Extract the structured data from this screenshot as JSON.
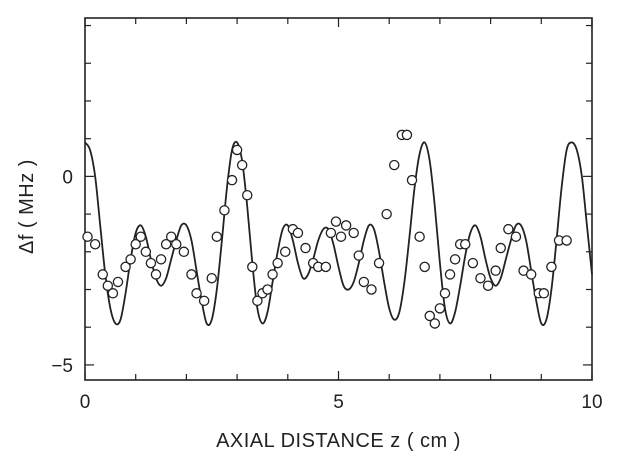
{
  "chart_data": {
    "type": "scatter",
    "xlabel": "AXIAL DISTANCE z ( cm )",
    "ylabel": "Δf  ( MHz )",
    "xlim": [
      0,
      10
    ],
    "ylim": [
      -5.4,
      4.2
    ],
    "x_ticks": [
      0,
      5,
      10
    ],
    "x_tick_labels": [
      "0",
      "5",
      "10"
    ],
    "y_ticks": [
      -5,
      0
    ],
    "y_tick_labels": [
      "−5",
      "0"
    ],
    "grid": false,
    "legend": "none",
    "colors": {
      "line": "#222222",
      "marker_fill": "#ffffff",
      "marker_edge": "#222222"
    },
    "series": [
      {
        "kind": "line",
        "x": [
          0,
          0.1,
          0.2,
          0.3,
          0.4,
          0.5,
          0.6,
          0.7,
          0.8,
          0.9,
          1.0,
          1.1,
          1.2,
          1.3,
          1.4,
          1.5,
          1.6,
          1.7,
          1.8,
          1.9,
          2.0,
          2.1,
          2.2,
          2.3,
          2.4,
          2.5,
          2.6,
          2.7,
          2.8,
          2.9,
          3.0,
          3.1,
          3.2,
          3.3,
          3.4,
          3.5,
          3.6,
          3.7,
          3.8,
          3.9,
          4.0,
          4.1,
          4.2,
          4.3,
          4.4,
          4.5,
          4.6,
          4.7,
          4.8,
          4.9,
          5.0,
          5.1,
          5.2,
          5.3,
          5.4,
          5.5,
          5.6,
          5.7,
          5.8,
          5.9,
          6.0,
          6.1,
          6.2,
          6.3,
          6.4,
          6.5,
          6.6,
          6.7,
          6.8,
          6.9,
          7.0,
          7.1,
          7.2,
          7.3,
          7.4,
          7.5,
          7.6,
          7.7,
          7.8,
          7.9,
          8.0,
          8.1,
          8.2,
          8.3,
          8.4,
          8.5,
          8.6,
          8.7,
          8.8,
          8.9,
          9.0,
          9.1,
          9.2,
          9.3,
          9.4,
          9.5,
          9.6,
          9.7,
          9.8,
          9.9,
          10.0
        ],
        "y": [
          0.9,
          0.7,
          0.0,
          -1.3,
          -2.6,
          -3.5,
          -3.9,
          -3.8,
          -3.1,
          -2.2,
          -1.5,
          -1.3,
          -1.6,
          -2.2,
          -2.7,
          -2.9,
          -2.7,
          -2.2,
          -1.7,
          -1.3,
          -1.3,
          -1.7,
          -2.5,
          -3.3,
          -3.9,
          -3.8,
          -3.0,
          -1.7,
          -0.3,
          0.7,
          0.9,
          0.4,
          -0.8,
          -2.3,
          -3.5,
          -3.9,
          -3.6,
          -2.8,
          -2.0,
          -1.4,
          -1.3,
          -1.7,
          -2.3,
          -2.7,
          -2.6,
          -2.2,
          -1.7,
          -1.4,
          -1.4,
          -1.8,
          -2.4,
          -2.9,
          -3.0,
          -2.8,
          -2.3,
          -1.7,
          -1.3,
          -1.4,
          -2.0,
          -2.8,
          -3.5,
          -3.8,
          -3.6,
          -2.8,
          -1.6,
          -0.3,
          0.6,
          0.9,
          0.4,
          -0.8,
          -2.3,
          -3.5,
          -3.9,
          -3.6,
          -2.9,
          -2.1,
          -1.5,
          -1.3,
          -1.6,
          -2.2,
          -2.7,
          -2.9,
          -2.7,
          -2.2,
          -1.7,
          -1.3,
          -1.3,
          -1.7,
          -2.5,
          -3.3,
          -3.9,
          -3.8,
          -3.0,
          -1.7,
          -0.3,
          0.7,
          0.9,
          0.7,
          0.0,
          -1.3,
          -2.6
        ]
      },
      {
        "kind": "scatter",
        "x": [
          0.05,
          0.2,
          0.35,
          0.45,
          0.55,
          0.65,
          0.8,
          0.9,
          1.0,
          1.1,
          1.2,
          1.3,
          1.4,
          1.5,
          1.6,
          1.7,
          1.8,
          1.95,
          2.1,
          2.2,
          2.35,
          2.5,
          2.6,
          2.75,
          2.9,
          3.0,
          3.1,
          3.2,
          3.3,
          3.4,
          3.5,
          3.6,
          3.7,
          3.8,
          3.95,
          4.1,
          4.2,
          4.35,
          4.5,
          4.6,
          4.75,
          4.85,
          4.95,
          5.05,
          5.15,
          5.3,
          5.4,
          5.5,
          5.65,
          5.8,
          5.95,
          6.1,
          6.25,
          6.35,
          6.45,
          6.6,
          6.7,
          6.8,
          6.9,
          7.0,
          7.1,
          7.2,
          7.3,
          7.4,
          7.5,
          7.65,
          7.8,
          7.95,
          8.1,
          8.2,
          8.35,
          8.5,
          8.65,
          8.8,
          8.95,
          9.05,
          9.2,
          9.35,
          9.5
        ],
        "y": [
          -1.6,
          -1.8,
          -2.6,
          -2.9,
          -3.1,
          -2.8,
          -2.4,
          -2.2,
          -1.8,
          -1.6,
          -2.0,
          -2.3,
          -2.6,
          -2.2,
          -1.8,
          -1.6,
          -1.8,
          -2.0,
          -2.6,
          -3.1,
          -3.3,
          -2.7,
          -1.6,
          -0.9,
          -0.1,
          0.7,
          0.3,
          -0.5,
          -2.4,
          -3.3,
          -3.1,
          -3.0,
          -2.6,
          -2.3,
          -2.0,
          -1.4,
          -1.5,
          -1.9,
          -2.3,
          -2.4,
          -2.4,
          -1.5,
          -1.2,
          -1.6,
          -1.3,
          -1.5,
          -2.1,
          -2.8,
          -3.0,
          -2.3,
          -1.0,
          0.3,
          1.1,
          1.1,
          -0.1,
          -1.6,
          -2.4,
          -3.7,
          -3.9,
          -3.5,
          -3.1,
          -2.6,
          -2.2,
          -1.8,
          -1.8,
          -2.3,
          -2.7,
          -2.9,
          -2.5,
          -1.9,
          -1.4,
          -1.6,
          -2.5,
          -2.6,
          -3.1,
          -3.1,
          -2.4,
          -1.7,
          -1.7
        ]
      }
    ]
  }
}
